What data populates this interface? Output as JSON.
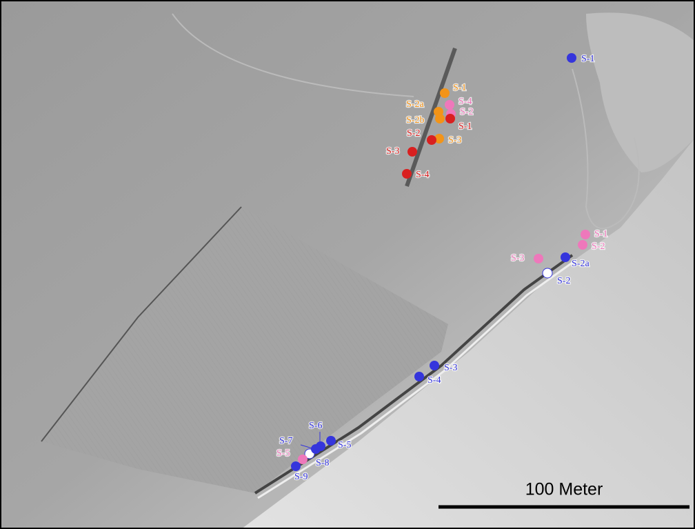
{
  "groups": [
    {
      "color": "#3535dc",
      "labels": [
        "S-1",
        "S-2a",
        "S-2",
        "S-3",
        "S-4",
        "S-5",
        "S-6",
        "S-7",
        "S-8",
        "S-9"
      ]
    },
    {
      "color": "#ee78bb",
      "labels": [
        "S-4",
        "S-2",
        "S-1",
        "S-2",
        "S-3",
        "S-5"
      ]
    },
    {
      "color": "#f39418",
      "labels": [
        "S-1",
        "S-2a",
        "S-2b",
        "S-3"
      ]
    },
    {
      "color": "#d92020",
      "labels": [
        "S-1",
        "S-2",
        "S-3",
        "S-4"
      ]
    }
  ],
  "scale_bar": {
    "label": "100 Meter"
  }
}
